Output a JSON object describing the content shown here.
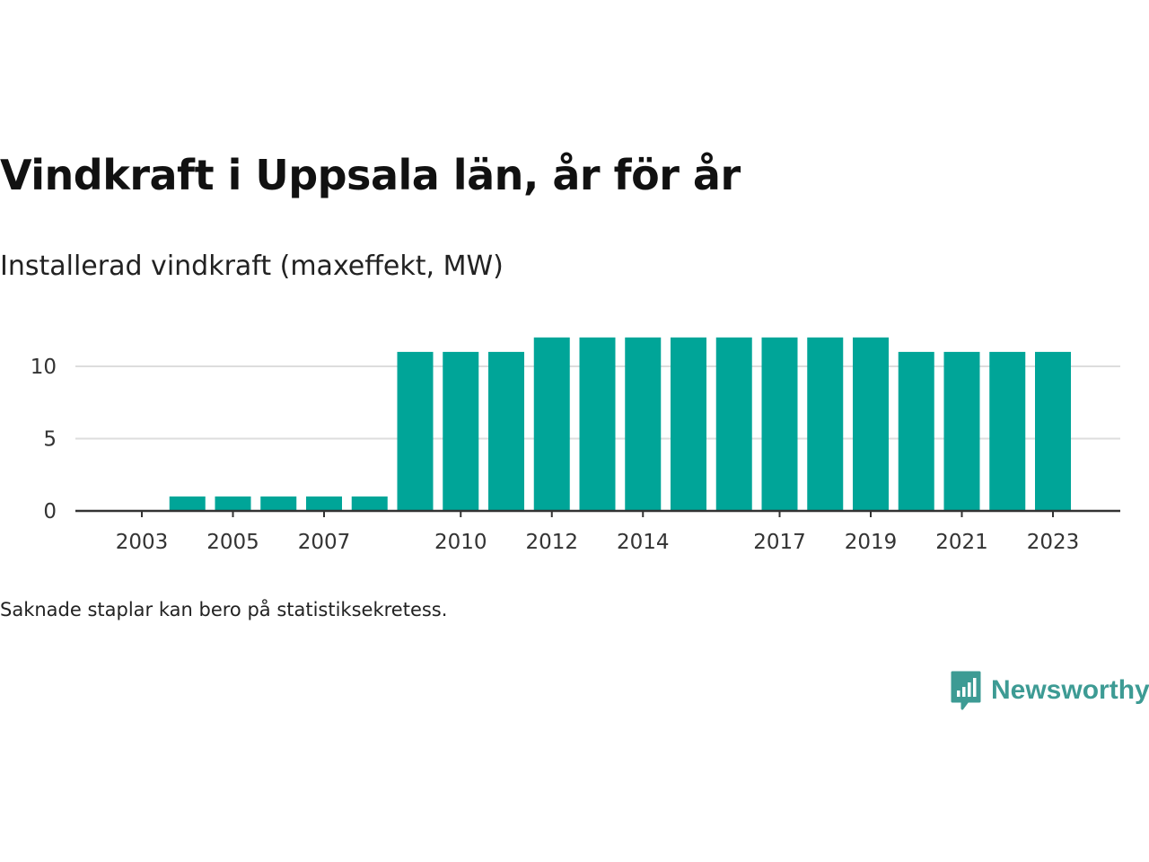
{
  "title": "Vindkraft i Uppsala län, år för år",
  "subtitle": "Installerad vindkraft (maxeffekt, MW)",
  "footnote": "Saknade staplar kan bero på statistiksekretess.",
  "brand": {
    "name": "Newsworthy",
    "icon": "bar-chart-speech-bubble-icon",
    "color": "#3d9b94"
  },
  "colors": {
    "bar": "#00a598",
    "grid": "#dddddd",
    "axis": "#333333"
  },
  "chart_data": {
    "type": "bar",
    "categories": [
      "2003",
      "2004",
      "2005",
      "2006",
      "2007",
      "2008",
      "2009",
      "2010",
      "2011",
      "2012",
      "2013",
      "2014",
      "2015",
      "2016",
      "2017",
      "2018",
      "2019",
      "2020",
      "2021",
      "2022",
      "2023"
    ],
    "values": [
      0,
      1,
      1,
      1,
      1,
      1,
      11,
      11,
      11,
      12,
      12,
      12,
      12,
      12,
      12,
      12,
      12,
      11,
      11,
      11,
      11
    ],
    "x_tick_labels": [
      "2003",
      "2005",
      "2007",
      "2010",
      "2012",
      "2014",
      "2017",
      "2019",
      "2021",
      "2023"
    ],
    "y_ticks": [
      0,
      5,
      10
    ],
    "ylim": [
      0,
      12.5
    ],
    "xlabel": "",
    "ylabel": "",
    "grid": true,
    "legend": "none"
  }
}
